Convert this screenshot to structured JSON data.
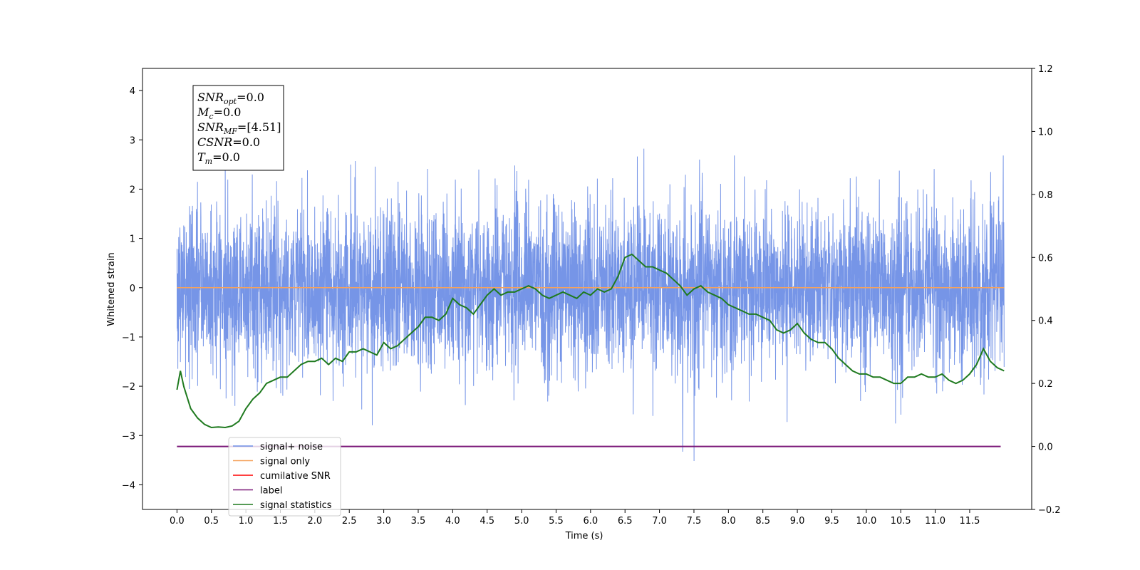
{
  "chart_data": {
    "type": "line",
    "xlabel": "Time (s)",
    "ylabel": "Whitened strain",
    "xlim": [
      -0.5,
      12.4
    ],
    "ylim": [
      -4.5,
      4.45
    ],
    "y2lim": [
      -0.2,
      1.2
    ],
    "x_ticks": [
      "0.0",
      "0.5",
      "1.0",
      "1.5",
      "2.0",
      "2.5",
      "3.0",
      "3.5",
      "4.0",
      "4.5",
      "5.0",
      "5.5",
      "6.0",
      "6.5",
      "7.0",
      "7.5",
      "8.0",
      "8.5",
      "9.0",
      "9.5",
      "10.0",
      "10.5",
      "11.0",
      "11.5"
    ],
    "y_ticks": [
      "4",
      "3",
      "2",
      "1",
      "0",
      "−1",
      "−2",
      "−3",
      "−4"
    ],
    "y2_ticks": [
      "1.2",
      "1.0",
      "0.8",
      "0.6",
      "0.4",
      "0.2",
      "0.0",
      "−0.2"
    ],
    "grid": false,
    "legend_position": "lower-left",
    "annotation": [
      {
        "base": "SNR",
        "sub": "opt",
        "value": "=0.0"
      },
      {
        "base": "M",
        "sub": "c",
        "value": "=0.0"
      },
      {
        "base": "SNR",
        "sub": "MF",
        "value": "=[4.51]"
      },
      {
        "base": "CSNR",
        "sub": "",
        "value": "=0.0"
      },
      {
        "base": "T",
        "sub": "m",
        "value": "=0.0"
      }
    ],
    "series": [
      {
        "name": "signal+ noise",
        "color": "#6f8fe6",
        "axis": "left",
        "noise_std": 0.85,
        "x_range": [
          0.0,
          12.0
        ],
        "y_range": [
          -4.1,
          4.05
        ]
      },
      {
        "name": "signal only",
        "color": "#f5a25d",
        "axis": "left",
        "constant": 0.0
      },
      {
        "name": "cumilative SNR",
        "color": "#ff0000",
        "axis": "right",
        "points": []
      },
      {
        "name": "label",
        "color": "#7b1979",
        "axis": "right",
        "constant": 0.0
      },
      {
        "name": "signal statistics",
        "color": "#1f7a1f",
        "axis": "right",
        "x": [
          0.0,
          0.05,
          0.1,
          0.2,
          0.3,
          0.4,
          0.5,
          0.6,
          0.7,
          0.8,
          0.9,
          1.0,
          1.1,
          1.2,
          1.3,
          1.4,
          1.5,
          1.6,
          1.7,
          1.8,
          1.9,
          2.0,
          2.1,
          2.2,
          2.3,
          2.4,
          2.5,
          2.6,
          2.7,
          2.8,
          2.9,
          3.0,
          3.1,
          3.2,
          3.3,
          3.4,
          3.5,
          3.6,
          3.7,
          3.8,
          3.9,
          4.0,
          4.1,
          4.2,
          4.3,
          4.4,
          4.5,
          4.6,
          4.7,
          4.8,
          4.9,
          5.0,
          5.1,
          5.2,
          5.3,
          5.4,
          5.5,
          5.6,
          5.7,
          5.8,
          5.9,
          6.0,
          6.1,
          6.2,
          6.3,
          6.4,
          6.5,
          6.6,
          6.7,
          6.8,
          6.9,
          7.0,
          7.1,
          7.2,
          7.3,
          7.4,
          7.5,
          7.6,
          7.7,
          7.8,
          7.9,
          8.0,
          8.1,
          8.2,
          8.3,
          8.4,
          8.5,
          8.6,
          8.7,
          8.8,
          8.9,
          9.0,
          9.1,
          9.2,
          9.3,
          9.4,
          9.5,
          9.6,
          9.7,
          9.8,
          9.9,
          10.0,
          10.1,
          10.2,
          10.3,
          10.4,
          10.5,
          10.6,
          10.7,
          10.8,
          10.9,
          11.0,
          11.1,
          11.2,
          11.3,
          11.4,
          11.5,
          11.6,
          11.7,
          11.8,
          11.9,
          12.0
        ],
        "y": [
          0.18,
          0.24,
          0.19,
          0.12,
          0.09,
          0.07,
          0.06,
          0.062,
          0.06,
          0.065,
          0.08,
          0.12,
          0.15,
          0.17,
          0.2,
          0.21,
          0.22,
          0.22,
          0.24,
          0.26,
          0.27,
          0.27,
          0.28,
          0.26,
          0.28,
          0.27,
          0.3,
          0.3,
          0.31,
          0.3,
          0.29,
          0.33,
          0.31,
          0.32,
          0.34,
          0.36,
          0.38,
          0.41,
          0.41,
          0.4,
          0.42,
          0.47,
          0.45,
          0.44,
          0.42,
          0.45,
          0.48,
          0.5,
          0.48,
          0.49,
          0.49,
          0.5,
          0.51,
          0.5,
          0.48,
          0.47,
          0.48,
          0.49,
          0.48,
          0.47,
          0.49,
          0.48,
          0.5,
          0.49,
          0.5,
          0.54,
          0.6,
          0.61,
          0.59,
          0.57,
          0.57,
          0.56,
          0.55,
          0.53,
          0.51,
          0.48,
          0.5,
          0.51,
          0.49,
          0.48,
          0.47,
          0.45,
          0.44,
          0.43,
          0.42,
          0.42,
          0.41,
          0.4,
          0.37,
          0.36,
          0.37,
          0.39,
          0.36,
          0.34,
          0.33,
          0.33,
          0.31,
          0.28,
          0.26,
          0.24,
          0.23,
          0.23,
          0.22,
          0.22,
          0.21,
          0.2,
          0.2,
          0.22,
          0.22,
          0.23,
          0.22,
          0.22,
          0.23,
          0.21,
          0.2,
          0.21,
          0.23,
          0.26,
          0.31,
          0.27,
          0.25,
          0.24
        ]
      }
    ]
  }
}
